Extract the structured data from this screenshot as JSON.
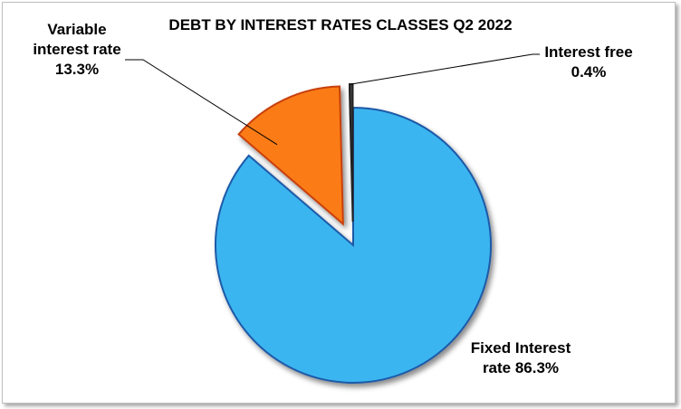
{
  "chart_data": {
    "type": "pie",
    "title": "DEBT BY INTEREST RATES CLASSES Q2 2022",
    "slices": [
      {
        "label_line1": "Fixed Interest",
        "label_line2": "rate 86.3%",
        "value": 86.3,
        "color": "#3bb5f0",
        "exploded": false
      },
      {
        "label_line1": "Variable",
        "label_line2": "interest rate",
        "label_line3": "13.3%",
        "value": 13.3,
        "color": "#fb7b14",
        "exploded": true
      },
      {
        "label_line1": "Interest free",
        "label_line2": "0.4%",
        "value": 0.4,
        "color": "#404040",
        "exploded": true
      }
    ]
  }
}
